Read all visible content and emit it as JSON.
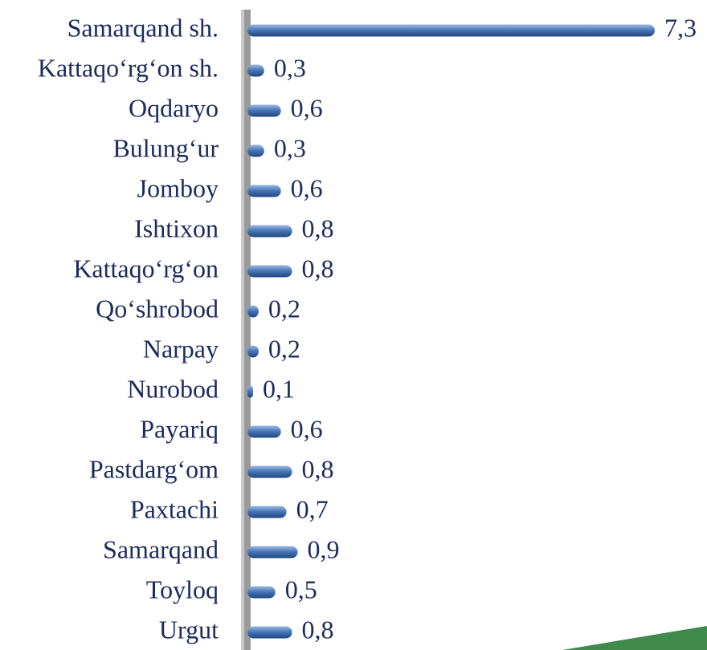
{
  "chart_data": {
    "type": "bar",
    "orientation": "horizontal",
    "categories": [
      "Samarqand sh.",
      "Kattaqo‘rg‘on sh.",
      "Oqdaryo",
      "Bulung‘ur",
      "Jomboy",
      "Ishtixon",
      "Kattaqo‘rg‘on",
      "Qo‘shrobod",
      "Narpay",
      "Nurobod",
      "Payariq",
      "Pastdarg‘om",
      "Paxtachi",
      "Samarqand",
      "Toyloq",
      "Urgut"
    ],
    "values": [
      7.3,
      0.3,
      0.6,
      0.3,
      0.6,
      0.8,
      0.8,
      0.2,
      0.2,
      0.1,
      0.6,
      0.8,
      0.7,
      0.9,
      0.5,
      0.8
    ],
    "value_labels": [
      "7,3",
      "0,3",
      "0,6",
      "0,3",
      "0,6",
      "0,8",
      "0,8",
      "0,2",
      "0,2",
      "0,1",
      "0,6",
      "0,8",
      "0,7",
      "0,9",
      "0,5",
      "0,8"
    ],
    "color": "#4a78b8"
  }
}
